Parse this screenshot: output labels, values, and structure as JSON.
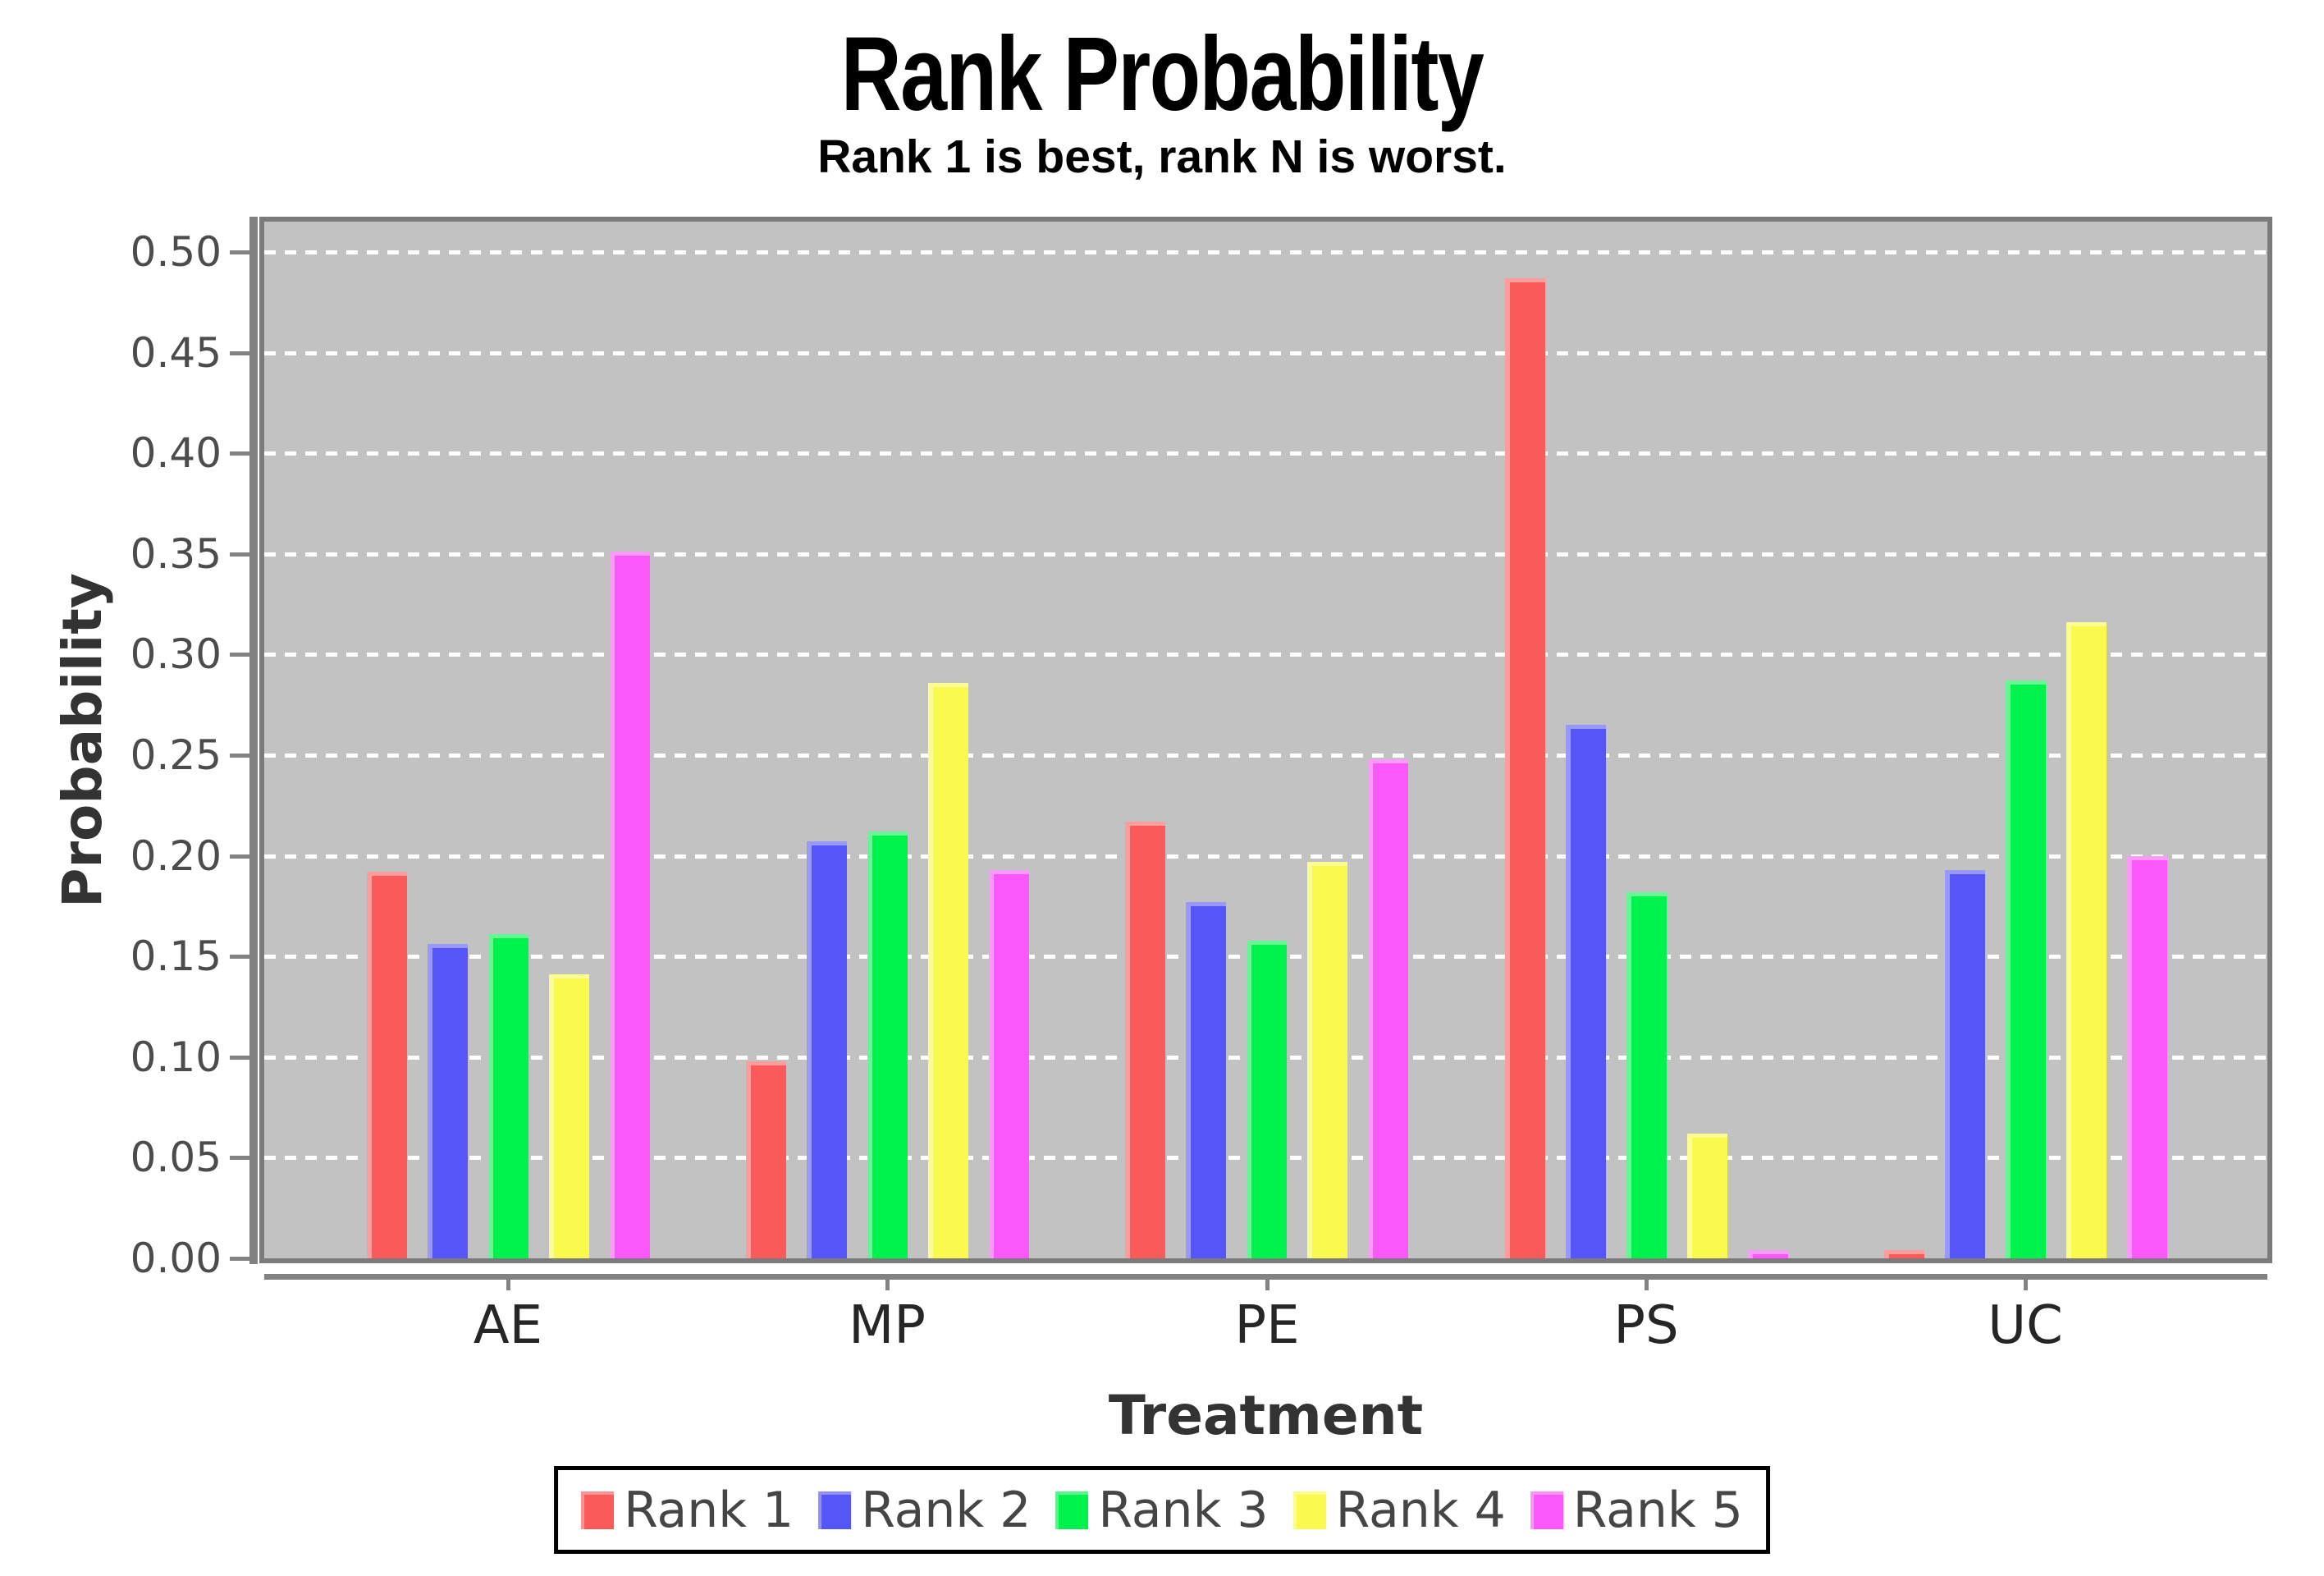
{
  "title": "Rank Probability",
  "subtitle": "Rank 1 is best, rank N is worst.",
  "axes": {
    "x_label": "Treatment",
    "y_label": "Probability"
  },
  "y_ticks": [
    "0.00",
    "0.05",
    "0.10",
    "0.15",
    "0.20",
    "0.25",
    "0.30",
    "0.35",
    "0.40",
    "0.45",
    "0.50"
  ],
  "legend": {
    "position": "bottom",
    "items": [
      "Rank 1",
      "Rank 2",
      "Rank 3",
      "Rank 4",
      "Rank 5"
    ]
  },
  "colors": {
    "plot_background": "#c2c2c2",
    "gridline": "#ffffff",
    "axis_line": "#828282",
    "frame": "#7b7b7b",
    "legend_border": "#000000"
  },
  "chart_data": {
    "type": "bar",
    "title": "Rank Probability",
    "subtitle": "Rank 1 is best, rank N is worst.",
    "xlabel": "Treatment",
    "ylabel": "Probability",
    "categories": [
      "AE",
      "MP",
      "PE",
      "PS",
      "UC"
    ],
    "series": [
      {
        "name": "Rank 1",
        "color": "#fb5a5a",
        "values": [
          0.192,
          0.098,
          0.217,
          0.487,
          0.004
        ]
      },
      {
        "name": "Rank 2",
        "color": "#5655f8",
        "values": [
          0.156,
          0.207,
          0.177,
          0.265,
          0.193
        ]
      },
      {
        "name": "Rank 3",
        "color": "#00f24d",
        "values": [
          0.161,
          0.212,
          0.158,
          0.182,
          0.287
        ]
      },
      {
        "name": "Rank 4",
        "color": "#fafa4e",
        "values": [
          0.141,
          0.286,
          0.197,
          0.062,
          0.316
        ]
      },
      {
        "name": "Rank 5",
        "color": "#fa58fa",
        "values": [
          0.351,
          0.193,
          0.248,
          0.004,
          0.2
        ]
      }
    ],
    "ylim": [
      0,
      0.5
    ],
    "ytick_step": 0.05,
    "grid": true,
    "legend_position": "bottom"
  }
}
